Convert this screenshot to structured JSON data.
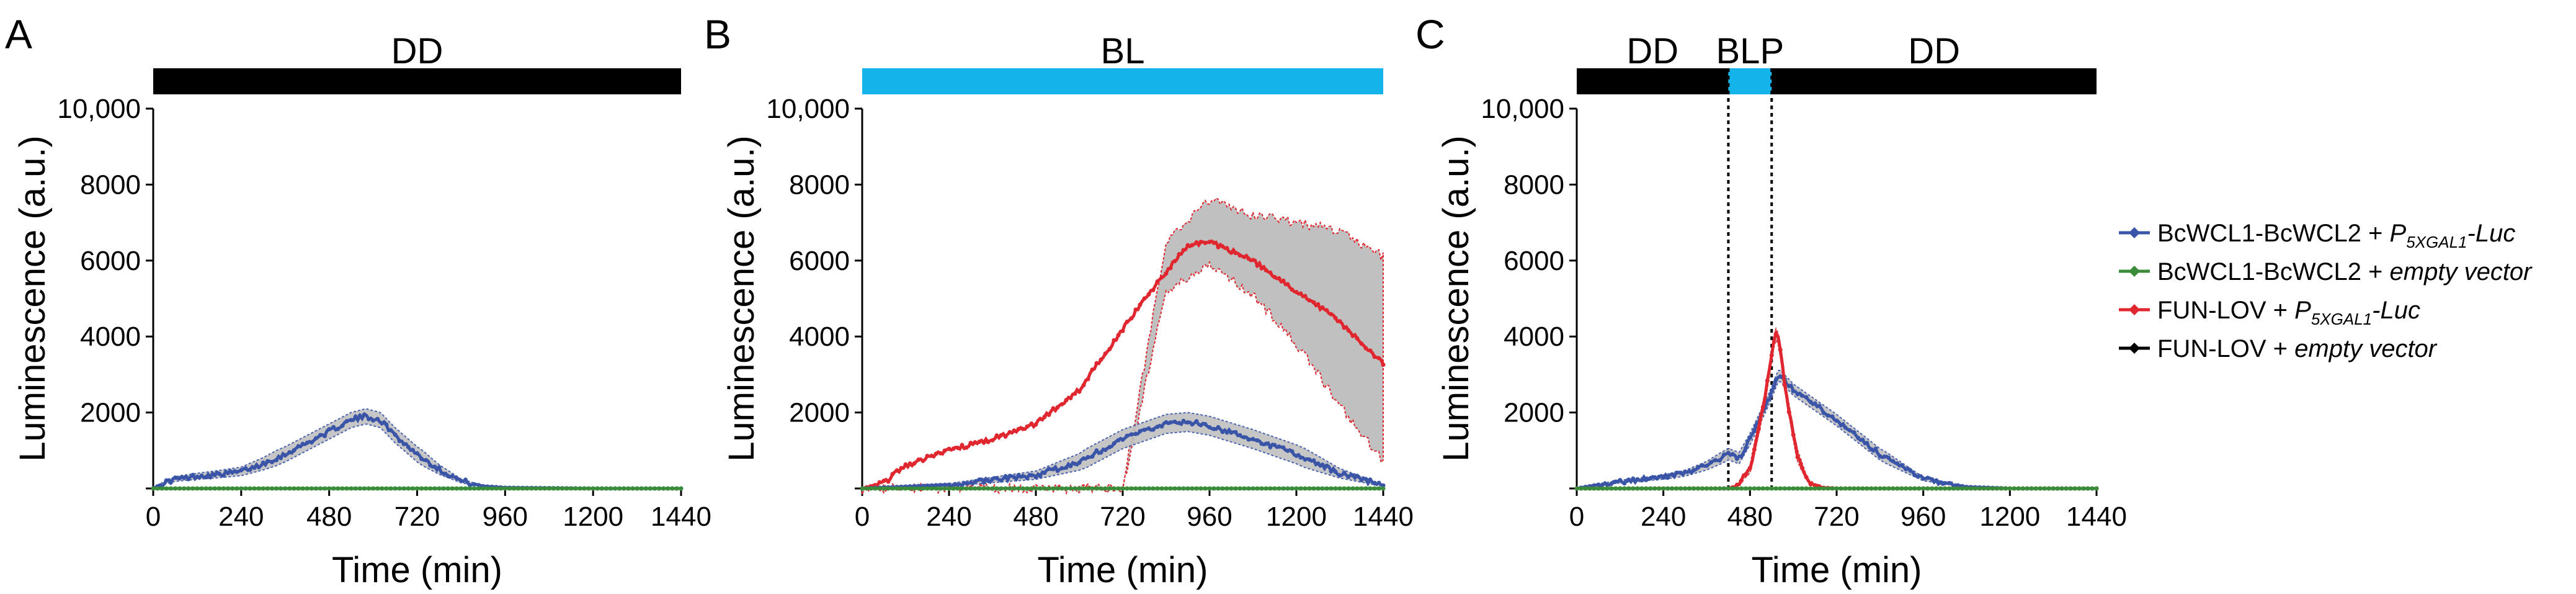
{
  "figure": {
    "panels": [
      "A",
      "B",
      "C"
    ],
    "colors": {
      "blue": "#3a55a8",
      "green": "#3a8c3a",
      "red": "#e0262e",
      "black": "#000000",
      "light": "#14b4ea",
      "band": "#c0c0c0"
    }
  },
  "legend": [
    {
      "name": "BcWCL1-BcWCL2 + ",
      "tail": "P",
      "sub": "5XGAL1",
      "suffix": "-Luc",
      "color": "#3a55a8"
    },
    {
      "name": "BcWCL1-BcWCL2 + ",
      "tail": "empty vector",
      "sub": "",
      "suffix": "",
      "color": "#3a8c3a"
    },
    {
      "name": "FUN-LOV + ",
      "tail": "P",
      "sub": "5XGAL1",
      "suffix": "-Luc",
      "color": "#e0262e"
    },
    {
      "name": "FUN-LOV + ",
      "tail": "empty vector",
      "sub": "",
      "suffix": "",
      "color": "#000000"
    }
  ],
  "chart_data": [
    {
      "panel": "A",
      "type": "line",
      "condition_bar": [
        {
          "label": "DD",
          "from": 0,
          "to": 1440,
          "color": "#000000"
        }
      ],
      "xlabel": "Time (min)",
      "ylabel": "Luminescence (a.u.)",
      "xlim": [
        0,
        1440
      ],
      "ylim": [
        0,
        10000
      ],
      "xticks": [
        0,
        240,
        480,
        720,
        960,
        1200,
        1440
      ],
      "yticks": [
        0,
        2000,
        4000,
        6000,
        8000,
        10000
      ],
      "ytick_labels": [
        "",
        "2000",
        "4000",
        "6000",
        "8000",
        "10,000"
      ],
      "series": [
        {
          "name": "BcWCL1-BcWCL2 + P5XGAL1-Luc",
          "color": "#3a55a8",
          "points": [
            [
              0,
              0
            ],
            [
              30,
              150
            ],
            [
              60,
              250
            ],
            [
              120,
              320
            ],
            [
              180,
              380
            ],
            [
              240,
              450
            ],
            [
              300,
              650
            ],
            [
              360,
              900
            ],
            [
              420,
              1200
            ],
            [
              480,
              1500
            ],
            [
              540,
              1800
            ],
            [
              580,
              1900
            ],
            [
              620,
              1800
            ],
            [
              660,
              1400
            ],
            [
              720,
              900
            ],
            [
              780,
              500
            ],
            [
              840,
              200
            ],
            [
              900,
              60
            ],
            [
              960,
              20
            ],
            [
              1200,
              0
            ],
            [
              1440,
              0
            ]
          ],
          "err": 200
        },
        {
          "name": "BcWCL1-BcWCL2 + empty vector",
          "color": "#3a8c3a",
          "points": [
            [
              0,
              0
            ],
            [
              1440,
              0
            ]
          ],
          "err": 0
        }
      ]
    },
    {
      "panel": "B",
      "type": "line",
      "condition_bar": [
        {
          "label": "BL",
          "from": 0,
          "to": 1440,
          "color": "#14b4ea"
        }
      ],
      "xlabel": "Time (min)",
      "ylabel": "Luminescence (a.u.)",
      "xlim": [
        0,
        1440
      ],
      "ylim": [
        0,
        10000
      ],
      "xticks": [
        0,
        240,
        480,
        720,
        960,
        1200,
        1440
      ],
      "yticks": [
        0,
        2000,
        4000,
        6000,
        8000,
        10000
      ],
      "ytick_labels": [
        "",
        "2000",
        "4000",
        "6000",
        "8000",
        "10,000"
      ],
      "series": [
        {
          "name": "FUN-LOV + P5XGAL1-Luc",
          "color": "#e0262e",
          "points": [
            [
              0,
              0
            ],
            [
              60,
              150
            ],
            [
              120,
              600
            ],
            [
              240,
              1000
            ],
            [
              360,
              1300
            ],
            [
              480,
              1700
            ],
            [
              600,
              2600
            ],
            [
              720,
              4200
            ],
            [
              840,
              5700
            ],
            [
              900,
              6400
            ],
            [
              960,
              6500
            ],
            [
              1080,
              6000
            ],
            [
              1200,
              5200
            ],
            [
              1320,
              4400
            ],
            [
              1440,
              3300
            ]
          ],
          "err_lower": [
            [
              0,
              0
            ],
            [
              120,
              0
            ],
            [
              480,
              0
            ],
            [
              720,
              0
            ],
            [
              840,
              5200
            ],
            [
              960,
              5900
            ],
            [
              1080,
              5100
            ],
            [
              1200,
              3800
            ],
            [
              1320,
              2200
            ],
            [
              1440,
              700
            ]
          ],
          "err_upper": [
            [
              0,
              0
            ],
            [
              120,
              0
            ],
            [
              480,
              0
            ],
            [
              720,
              0
            ],
            [
              840,
              6500
            ],
            [
              960,
              7600
            ],
            [
              1080,
              7200
            ],
            [
              1200,
              7000
            ],
            [
              1320,
              6800
            ],
            [
              1440,
              6100
            ]
          ]
        },
        {
          "name": "BcWCL1-BcWCL2 + P5XGAL1-Luc",
          "color": "#3a55a8",
          "points": [
            [
              0,
              0
            ],
            [
              240,
              100
            ],
            [
              480,
              350
            ],
            [
              600,
              700
            ],
            [
              720,
              1300
            ],
            [
              840,
              1700
            ],
            [
              900,
              1750
            ],
            [
              960,
              1650
            ],
            [
              1080,
              1300
            ],
            [
              1200,
              900
            ],
            [
              1320,
              400
            ],
            [
              1440,
              80
            ]
          ],
          "err": 250
        },
        {
          "name": "BcWCL1-BcWCL2 + empty vector",
          "color": "#3a8c3a",
          "points": [
            [
              0,
              0
            ],
            [
              1440,
              0
            ]
          ],
          "err": 0
        }
      ]
    },
    {
      "panel": "C",
      "type": "line",
      "condition_bar": [
        {
          "label": "DD",
          "from": 0,
          "to": 420,
          "color": "#000000"
        },
        {
          "label": "BLP",
          "from": 420,
          "to": 540,
          "color": "#14b4ea"
        },
        {
          "label": "DD",
          "from": 540,
          "to": 1440,
          "color": "#000000"
        }
      ],
      "vlines": [
        420,
        540
      ],
      "xlabel": "Time (min)",
      "ylabel": "Luminescence (a.u.)",
      "xlim": [
        0,
        1440
      ],
      "ylim": [
        0,
        10000
      ],
      "xticks": [
        0,
        240,
        480,
        720,
        960,
        1200,
        1440
      ],
      "yticks": [
        0,
        2000,
        4000,
        6000,
        8000,
        10000
      ],
      "ytick_labels": [
        "",
        "2000",
        "4000",
        "6000",
        "8000",
        "10,000"
      ],
      "series": [
        {
          "name": "BcWCL1-BcWCL2 + P5XGAL1-Luc",
          "color": "#3a55a8",
          "points": [
            [
              0,
              0
            ],
            [
              60,
              100
            ],
            [
              120,
              180
            ],
            [
              240,
              300
            ],
            [
              300,
              400
            ],
            [
              360,
              600
            ],
            [
              420,
              900
            ],
            [
              450,
              800
            ],
            [
              480,
              1300
            ],
            [
              530,
              2300
            ],
            [
              560,
              3000
            ],
            [
              600,
              2600
            ],
            [
              720,
              1800
            ],
            [
              840,
              900
            ],
            [
              960,
              250
            ],
            [
              1080,
              40
            ],
            [
              1200,
              0
            ],
            [
              1440,
              0
            ]
          ],
          "err": 150
        },
        {
          "name": "FUN-LOV + P5XGAL1-Luc",
          "color": "#e0262e",
          "points": [
            [
              0,
              0
            ],
            [
              420,
              0
            ],
            [
              440,
              50
            ],
            [
              480,
              500
            ],
            [
              520,
              2300
            ],
            [
              550,
              4100
            ],
            [
              560,
              3900
            ],
            [
              580,
              2500
            ],
            [
              610,
              900
            ],
            [
              640,
              200
            ],
            [
              680,
              20
            ],
            [
              720,
              0
            ],
            [
              1440,
              0
            ]
          ],
          "err": 150
        },
        {
          "name": "BcWCL1-BcWCL2 + empty vector",
          "color": "#3a8c3a",
          "points": [
            [
              0,
              0
            ],
            [
              1440,
              0
            ]
          ],
          "err": 0
        }
      ]
    }
  ]
}
